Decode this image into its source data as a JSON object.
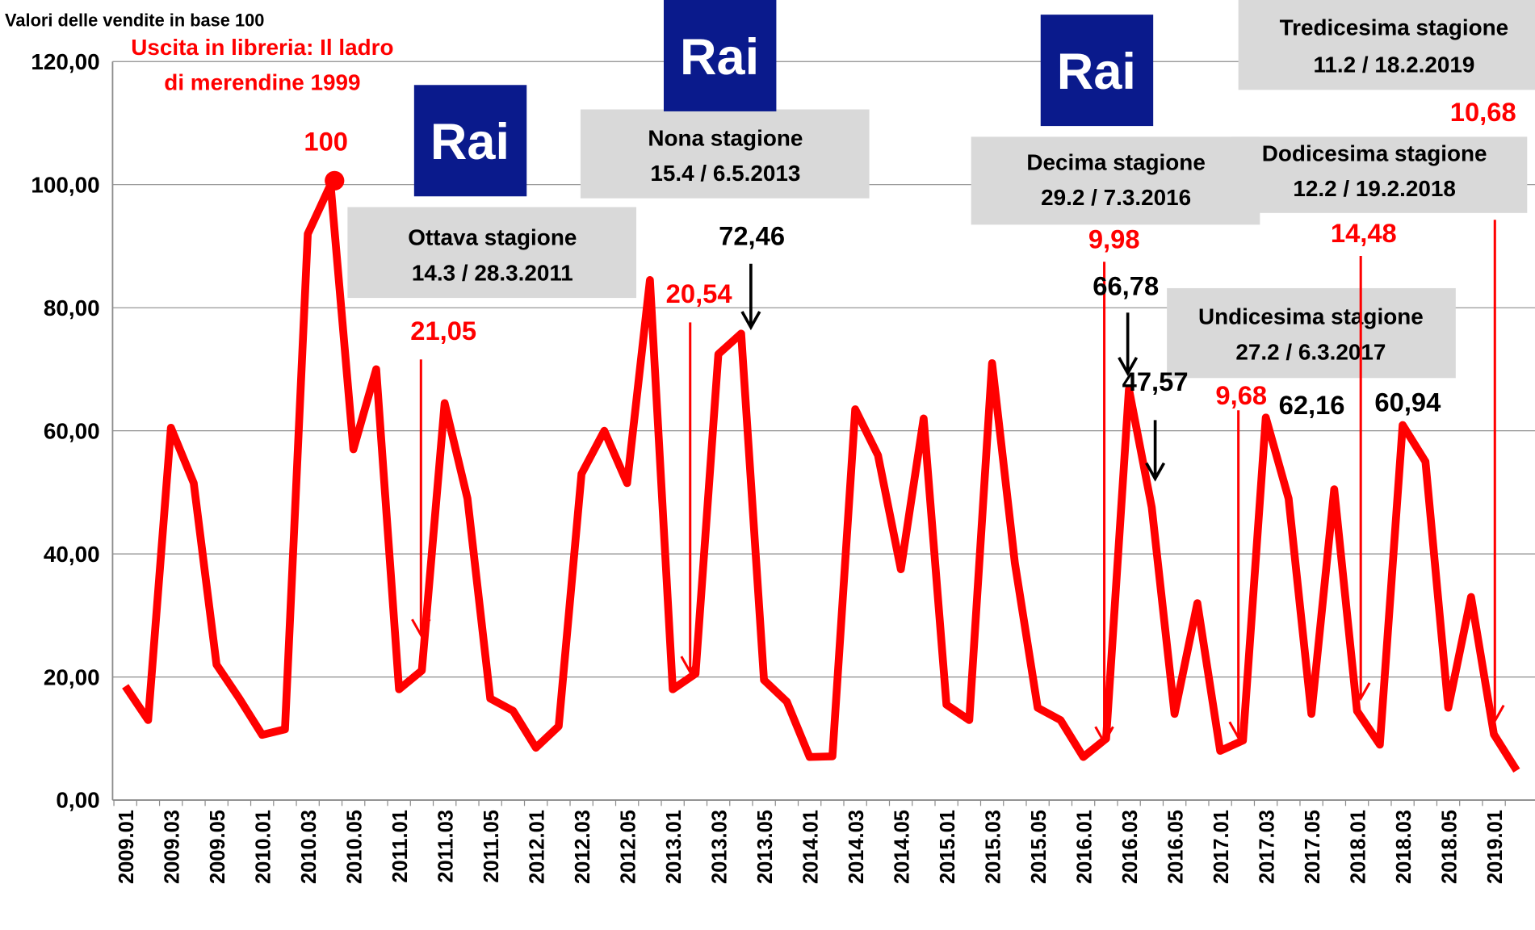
{
  "chart_data": {
    "type": "line",
    "title": "Valori delle vendite  in base 100",
    "annotation": [
      "Uscita in libreria: Il ladro",
      "di merendine 1999"
    ],
    "seasons": [
      [
        "Ottava stagione",
        "14.3 / 28.3.2011"
      ],
      [
        "Nona stagione",
        "15.4 / 6.5.2013"
      ],
      [
        "Decima stagione",
        "29.2 / 7.3.2016"
      ],
      [
        "Undicesima stagione",
        "27.2 / 6.3.2017"
      ],
      [
        "Dodicesima stagione",
        "12.2 / 19.2.2018"
      ],
      [
        "Tredicesima stagione",
        "11.2 / 18.2.2019"
      ]
    ],
    "logos": [
      "Rai",
      "Rai",
      "Rai"
    ],
    "categories": [
      "2009.01",
      null,
      "2009.03",
      null,
      "2009.05",
      null,
      "2010.01",
      null,
      "2010.03",
      null,
      "2010.05",
      null,
      "2011.01",
      null,
      "2011.03",
      null,
      "2011.05",
      null,
      "2012.01",
      null,
      "2012.03",
      null,
      "2012.05",
      null,
      "2013.01",
      null,
      "2013.03",
      null,
      "2013.05",
      null,
      "2014.01",
      null,
      "2014.03",
      null,
      "2014.05",
      null,
      "2015.01",
      null,
      "2015.03",
      null,
      "2015.05",
      null,
      "2016.01",
      null,
      "2016.03",
      null,
      "2016.05",
      null,
      "2017.01",
      null,
      "2017.03",
      null,
      "2017.05",
      null,
      "2018.01",
      null,
      "2018.03",
      null,
      "2018.05",
      null,
      "2019.01",
      null
    ],
    "values": [
      18.5,
      13,
      60.5,
      51.5,
      22,
      16.5,
      10.6,
      11.5,
      92,
      100,
      57,
      70,
      18,
      21.05,
      64.5,
      49,
      16.5,
      14.5,
      8.5,
      12,
      53,
      60,
      51.5,
      84.5,
      18,
      20.54,
      72.46,
      75.8,
      19.5,
      16,
      7,
      7.1,
      63.5,
      56,
      37.5,
      62,
      15.5,
      13,
      71,
      38.5,
      15,
      13,
      7,
      9.98,
      66.78,
      47.57,
      14,
      32,
      8,
      9.68,
      62.16,
      49,
      14,
      50.5,
      14.48,
      9,
      60.94,
      55,
      15,
      33,
      10.68,
      4.8
    ],
    "value_labels": [
      null,
      null,
      null,
      null,
      null,
      null,
      null,
      null,
      null,
      "100",
      null,
      null,
      null,
      "21,05",
      null,
      null,
      null,
      null,
      null,
      null,
      null,
      null,
      null,
      null,
      null,
      "20,54",
      "72,46",
      null,
      null,
      null,
      null,
      null,
      null,
      null,
      null,
      null,
      null,
      null,
      null,
      null,
      null,
      null,
      null,
      "9,98",
      "66,78",
      "47,57",
      null,
      null,
      null,
      "9,68",
      "62,16",
      null,
      null,
      null,
      "14,48",
      null,
      "60,94",
      null,
      null,
      null,
      "10,68",
      null
    ],
    "color": "#ff0000",
    "ylim": [
      0,
      120
    ],
    "yticks": [
      {
        "value": 0,
        "label": "0,00"
      },
      {
        "value": 20,
        "label": "20,00"
      },
      {
        "value": 40,
        "label": "40,00"
      },
      {
        "value": 60,
        "label": "60,00"
      },
      {
        "value": 80,
        "label": "80,00"
      },
      {
        "value": 100,
        "label": "100,00"
      },
      {
        "value": 120,
        "label": "120,00"
      }
    ],
    "grid": true
  }
}
